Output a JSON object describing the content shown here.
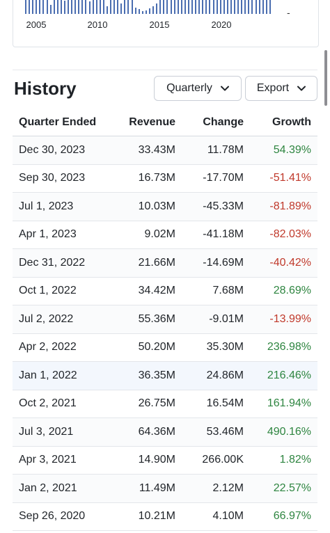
{
  "chart": {
    "x_labels": [
      "2005",
      "2010",
      "2015",
      "2020"
    ],
    "dash": "-",
    "bar_heights": [
      1,
      1,
      1,
      0.9,
      1,
      1,
      1,
      0.6,
      1,
      1,
      1,
      0.85,
      1,
      1,
      1,
      1,
      1,
      1,
      0.8,
      1,
      1,
      1,
      1,
      0.5,
      1,
      1,
      1,
      0.7,
      1,
      1,
      1,
      0.4,
      0.3,
      0.2,
      0.25,
      0.35,
      0.5,
      0.7,
      1,
      1,
      1,
      1,
      0.9,
      1,
      1,
      1,
      1,
      1,
      1,
      1,
      1,
      1,
      1,
      1,
      1,
      1,
      1,
      1,
      1,
      1,
      1,
      1,
      1,
      1,
      1,
      1,
      1,
      1,
      1,
      1
    ]
  },
  "history": {
    "title": "History",
    "period_button": "Quarterly",
    "export_button": "Export"
  },
  "table": {
    "headers": [
      "Quarter Ended",
      "Revenue",
      "Change",
      "Growth"
    ],
    "rows": [
      {
        "quarter": "Dec 30, 2023",
        "revenue": "33.43M",
        "change": "11.78M",
        "growth": "54.39%"
      },
      {
        "quarter": "Sep 30, 2023",
        "revenue": "16.73M",
        "change": "-17.70M",
        "growth": "-51.41%"
      },
      {
        "quarter": "Jul 1, 2023",
        "revenue": "10.03M",
        "change": "-45.33M",
        "growth": "-81.89%"
      },
      {
        "quarter": "Apr 1, 2023",
        "revenue": "9.02M",
        "change": "-41.18M",
        "growth": "-82.03%"
      },
      {
        "quarter": "Dec 31, 2022",
        "revenue": "21.66M",
        "change": "-14.69M",
        "growth": "-40.42%"
      },
      {
        "quarter": "Oct 1, 2022",
        "revenue": "34.42M",
        "change": "7.68M",
        "growth": "28.69%"
      },
      {
        "quarter": "Jul 2, 2022",
        "revenue": "55.36M",
        "change": "-9.01M",
        "growth": "-13.99%"
      },
      {
        "quarter": "Apr 2, 2022",
        "revenue": "50.20M",
        "change": "35.30M",
        "growth": "236.98%"
      },
      {
        "quarter": "Jan 1, 2022",
        "revenue": "36.35M",
        "change": "24.86M",
        "growth": "216.46%"
      },
      {
        "quarter": "Oct 2, 2021",
        "revenue": "26.75M",
        "change": "16.54M",
        "growth": "161.94%"
      },
      {
        "quarter": "Jul 3, 2021",
        "revenue": "64.36M",
        "change": "53.46M",
        "growth": "490.16%"
      },
      {
        "quarter": "Apr 3, 2021",
        "revenue": "14.90M",
        "change": "266.00K",
        "growth": "1.82%"
      },
      {
        "quarter": "Jan 2, 2021",
        "revenue": "11.49M",
        "change": "2.12M",
        "growth": "22.57%"
      },
      {
        "quarter": "Sep 26, 2020",
        "revenue": "10.21M",
        "change": "4.10M",
        "growth": "66.97%"
      }
    ]
  },
  "colors": {
    "positive": "#2e8540",
    "negative": "#c0392b",
    "bar": "#4a6db0"
  }
}
